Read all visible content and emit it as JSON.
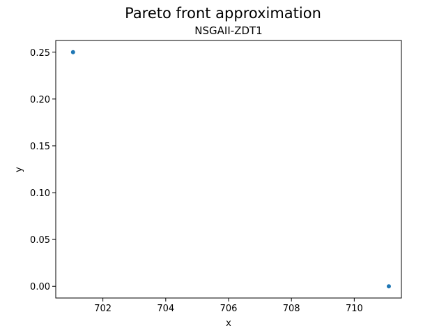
{
  "chart_data": {
    "type": "scatter",
    "title": "Pareto front approximation",
    "subtitle": "NSGAII-ZDT1",
    "xlabel": "x",
    "ylabel": "y",
    "xlim": [
      700.5,
      711.5
    ],
    "ylim": [
      -0.0125,
      0.2625
    ],
    "x_ticks": [
      {
        "value": 702,
        "label": "702"
      },
      {
        "value": 704,
        "label": "704"
      },
      {
        "value": 706,
        "label": "706"
      },
      {
        "value": 708,
        "label": "708"
      },
      {
        "value": 710,
        "label": "710"
      }
    ],
    "y_ticks": [
      {
        "value": 0.0,
        "label": "0.00"
      },
      {
        "value": 0.05,
        "label": "0.05"
      },
      {
        "value": 0.1,
        "label": "0.10"
      },
      {
        "value": 0.15,
        "label": "0.15"
      },
      {
        "value": 0.2,
        "label": "0.20"
      },
      {
        "value": 0.25,
        "label": "0.25"
      }
    ],
    "grid": false,
    "series": [
      {
        "color": "#1f77b4",
        "points": [
          {
            "x": 701.05,
            "y": 0.25
          },
          {
            "x": 711.1,
            "y": 0.0
          }
        ]
      }
    ]
  }
}
